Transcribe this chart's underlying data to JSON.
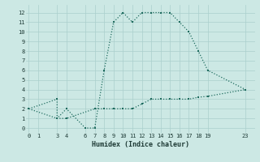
{
  "xlabel": "Humidex (Indice chaleur)",
  "bg_color": "#cce8e4",
  "line_color": "#1e6b5e",
  "grid_color": "#aacfcc",
  "line1_x": [
    0,
    3,
    3,
    4,
    6,
    7,
    8,
    9,
    10,
    11,
    12,
    13,
    14,
    15,
    16,
    17,
    18,
    19,
    23
  ],
  "line1_y": [
    2,
    3,
    1,
    2,
    0,
    0,
    6,
    11,
    12,
    11,
    12,
    12,
    12,
    12,
    11,
    10,
    8,
    6,
    4
  ],
  "line2_x": [
    0,
    3,
    4,
    7,
    8,
    9,
    10,
    11,
    12,
    13,
    14,
    15,
    16,
    17,
    18,
    19,
    23
  ],
  "line2_y": [
    2,
    1,
    1,
    2,
    2,
    2,
    2,
    2,
    2.5,
    3,
    3,
    3,
    3,
    3,
    3.2,
    3.3,
    4
  ],
  "xlim": [
    -0.3,
    24
  ],
  "ylim": [
    -0.5,
    12.8
  ],
  "xticks": [
    0,
    1,
    3,
    4,
    6,
    7,
    8,
    9,
    10,
    11,
    12,
    13,
    14,
    15,
    16,
    17,
    18,
    19,
    23
  ],
  "yticks": [
    0,
    1,
    2,
    3,
    4,
    5,
    6,
    7,
    8,
    9,
    10,
    11,
    12
  ]
}
